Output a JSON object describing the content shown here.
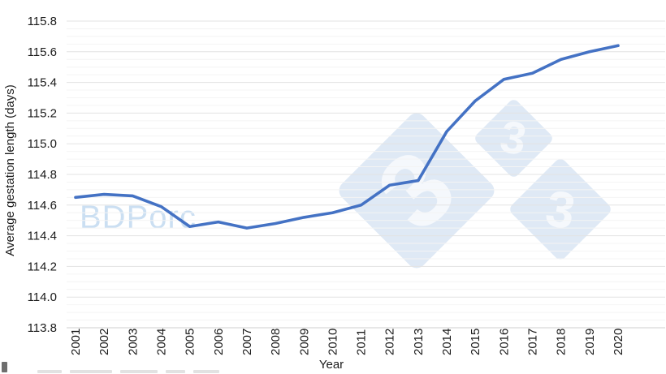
{
  "chart_data": {
    "type": "line",
    "title": "",
    "x": [
      "2001",
      "2002",
      "2003",
      "2004",
      "2005",
      "2006",
      "2007",
      "2008",
      "2009",
      "2010",
      "2011",
      "2012",
      "2013",
      "2014",
      "2015",
      "2016",
      "2017",
      "2018",
      "2019",
      "2020"
    ],
    "values": [
      114.65,
      114.67,
      114.66,
      114.59,
      114.46,
      114.49,
      114.45,
      114.48,
      114.52,
      114.55,
      114.6,
      114.73,
      114.76,
      115.08,
      115.28,
      115.42,
      115.46,
      115.55,
      115.6,
      115.64
    ],
    "xlabel": "Year",
    "ylabel": "Average gestation length (days)",
    "ylim": [
      113.8,
      115.8
    ],
    "yticks": [
      "113.8",
      "114.0",
      "114.2",
      "114.4",
      "114.6",
      "114.8",
      "115.0",
      "115.2",
      "115.4",
      "115.6",
      "115.8"
    ],
    "ytick_step": 0.2,
    "yminor_step": 0.05,
    "grid": "horizontal major + minor",
    "legend": "none",
    "line_color": "#4472c4"
  },
  "watermark": {
    "brand": "BDPorc",
    "logo_digits": [
      "3",
      "3",
      "3"
    ]
  },
  "colors": {
    "line": "#4472c4",
    "grid_major": "#e3e3e3",
    "grid_minor": "#f4f4f4",
    "grid_baseline": "#cfcfcf",
    "axis_text": "#1a1a1a",
    "watermark_fill": "#dfe9f5",
    "watermark_text": "#cbdff2"
  }
}
